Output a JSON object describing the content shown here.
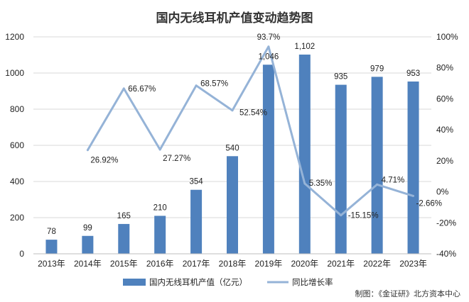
{
  "chart_data": {
    "type": "bar",
    "title": "国内无线耳机产值变动趋势图",
    "categories": [
      "2013年",
      "2014年",
      "2015年",
      "2016年",
      "2017年",
      "2018年",
      "2019年",
      "2020年",
      "2021年",
      "2022年",
      "2023年"
    ],
    "series": [
      {
        "name": "国内无线耳机产值（亿元）",
        "type": "bar",
        "axis": "left",
        "color": "#4f81bd",
        "values": [
          78,
          99,
          165,
          210,
          354,
          540,
          1046,
          1102,
          935,
          979,
          953
        ],
        "labels": [
          "78",
          "99",
          "165",
          "210",
          "354",
          "540",
          "1,046",
          "1,102",
          "935",
          "979",
          "953"
        ]
      },
      {
        "name": "同比增长率",
        "type": "line",
        "axis": "right",
        "color": "#95b3d7",
        "values": [
          null,
          26.92,
          66.67,
          27.27,
          68.57,
          52.54,
          93.7,
          5.35,
          -15.15,
          4.71,
          -2.66
        ],
        "labels": [
          "",
          "26.92%",
          "66.67%",
          "27.27%",
          "68.57%",
          "52.54%",
          "93.7%",
          "5.35%",
          "-15.15%",
          "4.71%",
          "-2.66%"
        ]
      }
    ],
    "ylim_left": [
      0,
      1200
    ],
    "yticks_left": [
      "0",
      "200",
      "400",
      "600",
      "800",
      "1000",
      "1200"
    ],
    "ylim_right": [
      -40,
      100
    ],
    "yticks_right": [
      "-40%",
      "-20%",
      "0%",
      "20%",
      "40%",
      "60%",
      "80%",
      "100%"
    ],
    "grid": true,
    "legend_position": "bottom",
    "source": "制图：《金证研》北方资本中心"
  }
}
